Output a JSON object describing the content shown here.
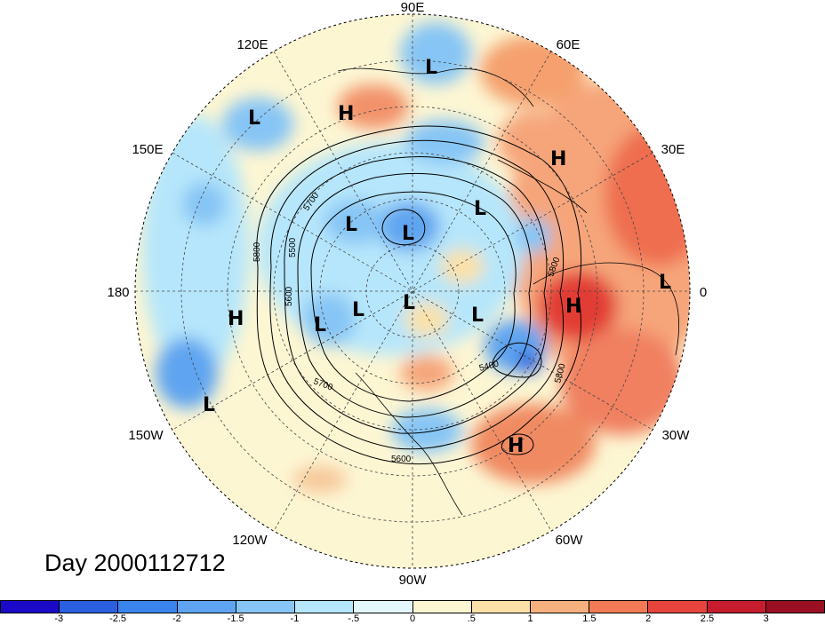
{
  "title": "Day 2000112712",
  "longitude_labels": {
    "lon_90e": "90E",
    "lon_60e": "60E",
    "lon_120e": "120E",
    "lon_30e": "30E",
    "lon_150e": "150E",
    "lon_0": "0",
    "lon_180": "180",
    "lon_30w": "30W",
    "lon_150w": "150W",
    "lon_60w": "60W",
    "lon_120w": "120W",
    "lon_90w": "90W"
  },
  "contour_labels": [
    "5700",
    "5800",
    "5500",
    "5600",
    "5700",
    "5400",
    "5800",
    "5600",
    "5800"
  ],
  "pressure_centers": [
    "L",
    "H",
    "L",
    "H",
    "H",
    "L",
    "L",
    "L",
    "L",
    "L",
    "L",
    "L",
    "H",
    "L",
    "L",
    "H",
    "H",
    "L"
  ],
  "colorbar": {
    "ticks": [
      "-3",
      "-2.5",
      "-2",
      "-1.5",
      "-1",
      "-.5",
      "0",
      ".5",
      "1",
      "1.5",
      "2",
      "2.5",
      "3"
    ],
    "colors": [
      "#1a0ac8",
      "#2a5fe0",
      "#3a84ee",
      "#5fa4f0",
      "#86c5f5",
      "#b6e6fb",
      "#e4f7fd",
      "#fdf6d3",
      "#fbe1a8",
      "#f7b17e",
      "#f27b56",
      "#e8443e",
      "#c61c2e",
      "#9b0f22"
    ]
  },
  "colors": {
    "background": "#ffffff",
    "ocean_neutral": "#fdf6d3"
  }
}
